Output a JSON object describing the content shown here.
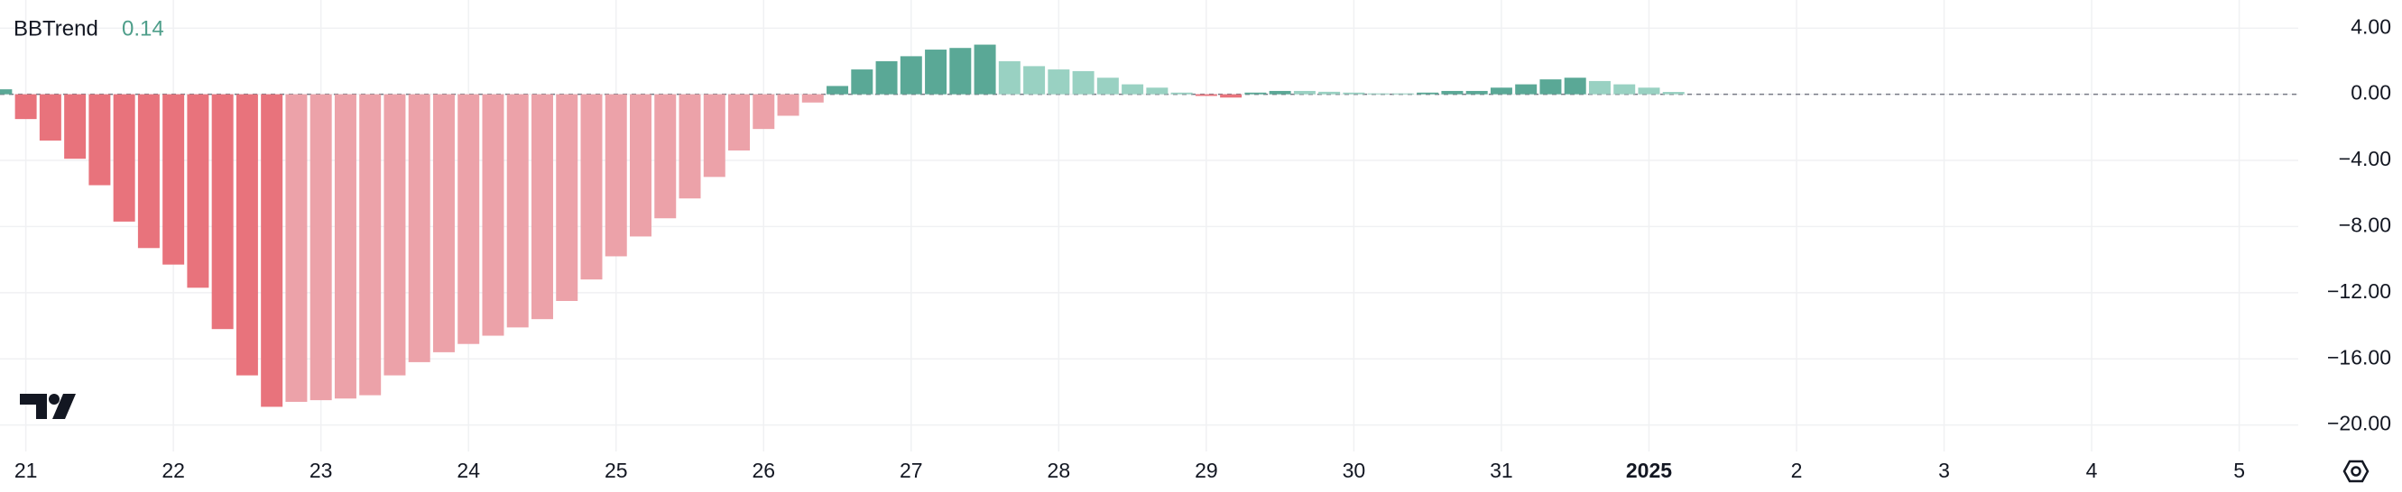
{
  "chart_data": {
    "type": "bar",
    "legend": {
      "name": "BBTrend",
      "value": 0.14,
      "color": "#4e9e8a"
    },
    "x": [
      -4,
      0,
      4,
      8,
      12,
      16,
      20,
      24,
      28,
      32,
      36,
      40,
      44,
      48,
      52,
      56,
      60,
      64,
      68,
      72,
      76,
      80,
      84,
      88,
      92,
      96,
      100,
      104,
      108,
      112,
      116,
      120,
      124,
      128,
      132,
      136,
      140,
      144,
      148,
      152,
      156,
      160,
      164,
      168,
      172,
      176,
      180,
      184,
      188,
      192,
      196,
      200,
      204,
      208,
      212,
      216,
      220,
      224,
      228,
      232,
      236,
      240,
      244,
      248,
      252,
      256,
      260,
      264,
      268
    ],
    "values": [
      0.3,
      -1.5,
      -2.8,
      -3.9,
      -5.5,
      -7.7,
      -9.3,
      -10.3,
      -11.7,
      -14.2,
      -17.0,
      -18.9,
      -18.6,
      -18.5,
      -18.4,
      -18.2,
      -17.0,
      -16.2,
      -15.6,
      -15.1,
      -14.6,
      -14.1,
      -13.6,
      -12.5,
      -11.2,
      -9.8,
      -8.6,
      -7.5,
      -6.3,
      -5.0,
      -3.4,
      -2.1,
      -1.3,
      -0.5,
      0.5,
      1.5,
      2.0,
      2.3,
      2.7,
      2.8,
      3.0,
      2.0,
      1.7,
      1.5,
      1.4,
      1.0,
      0.6,
      0.4,
      0.1,
      -0.1,
      -0.2,
      0.1,
      0.2,
      0.2,
      0.15,
      0.1,
      0.05,
      0.05,
      0.1,
      0.2,
      0.2,
      0.4,
      0.6,
      0.9,
      1.0,
      0.8,
      0.6,
      0.4,
      0.14
    ],
    "colors": [
      "#5aa896",
      "#e8737c",
      "#e8737c",
      "#e8737c",
      "#e8737c",
      "#e8737c",
      "#e8737c",
      "#e8737c",
      "#e8737c",
      "#e8737c",
      "#e8737c",
      "#e8737c",
      "#eca2a9",
      "#eca2a9",
      "#eca2a9",
      "#eca2a9",
      "#eca2a9",
      "#eca2a9",
      "#eca2a9",
      "#eca2a9",
      "#eca2a9",
      "#eca2a9",
      "#eca2a9",
      "#eca2a9",
      "#eca2a9",
      "#eca2a9",
      "#eca2a9",
      "#eca2a9",
      "#eca2a9",
      "#eca2a9",
      "#eca2a9",
      "#eca2a9",
      "#eca2a9",
      "#eca2a9",
      "#5aa896",
      "#5aa896",
      "#5aa896",
      "#5aa896",
      "#5aa896",
      "#5aa896",
      "#5aa896",
      "#99d1c2",
      "#99d1c2",
      "#99d1c2",
      "#99d1c2",
      "#99d1c2",
      "#99d1c2",
      "#99d1c2",
      "#99d1c2",
      "#e8737c",
      "#e8737c",
      "#5aa896",
      "#5aa896",
      "#99d1c2",
      "#99d1c2",
      "#99d1c2",
      "#99d1c2",
      "#99d1c2",
      "#5aa896",
      "#5aa896",
      "#5aa896",
      "#5aa896",
      "#5aa896",
      "#5aa896",
      "#5aa896",
      "#99d1c2",
      "#99d1c2",
      "#99d1c2",
      "#99d1c2"
    ],
    "xlim": [
      -4.2,
      369.6
    ],
    "xticks": [
      {
        "value": 0,
        "label": "21"
      },
      {
        "value": 24,
        "label": "22"
      },
      {
        "value": 48,
        "label": "23"
      },
      {
        "value": 72,
        "label": "24"
      },
      {
        "value": 96,
        "label": "25"
      },
      {
        "value": 120,
        "label": "26"
      },
      {
        "value": 144,
        "label": "27"
      },
      {
        "value": 168,
        "label": "28"
      },
      {
        "value": 192,
        "label": "29"
      },
      {
        "value": 216,
        "label": "30"
      },
      {
        "value": 240,
        "label": "31"
      },
      {
        "value": 264,
        "label": "2025"
      },
      {
        "value": 288,
        "label": "2"
      },
      {
        "value": 312,
        "label": "3"
      },
      {
        "value": 336,
        "label": "4"
      },
      {
        "value": 360,
        "label": "5"
      }
    ],
    "bold_xticks": [
      11
    ],
    "ylim": [
      -21.6,
      5.7
    ],
    "yticks": [
      {
        "value": 4,
        "label": "4.00"
      },
      {
        "value": 0,
        "label": "0.00"
      },
      {
        "value": -4,
        "label": "−4.00"
      },
      {
        "value": -8,
        "label": "−8.00"
      },
      {
        "value": -12,
        "label": "−12.00"
      },
      {
        "value": -16,
        "label": "−16.00"
      },
      {
        "value": -20,
        "label": "−20.00"
      }
    ],
    "hline": 0,
    "grid": true
  }
}
